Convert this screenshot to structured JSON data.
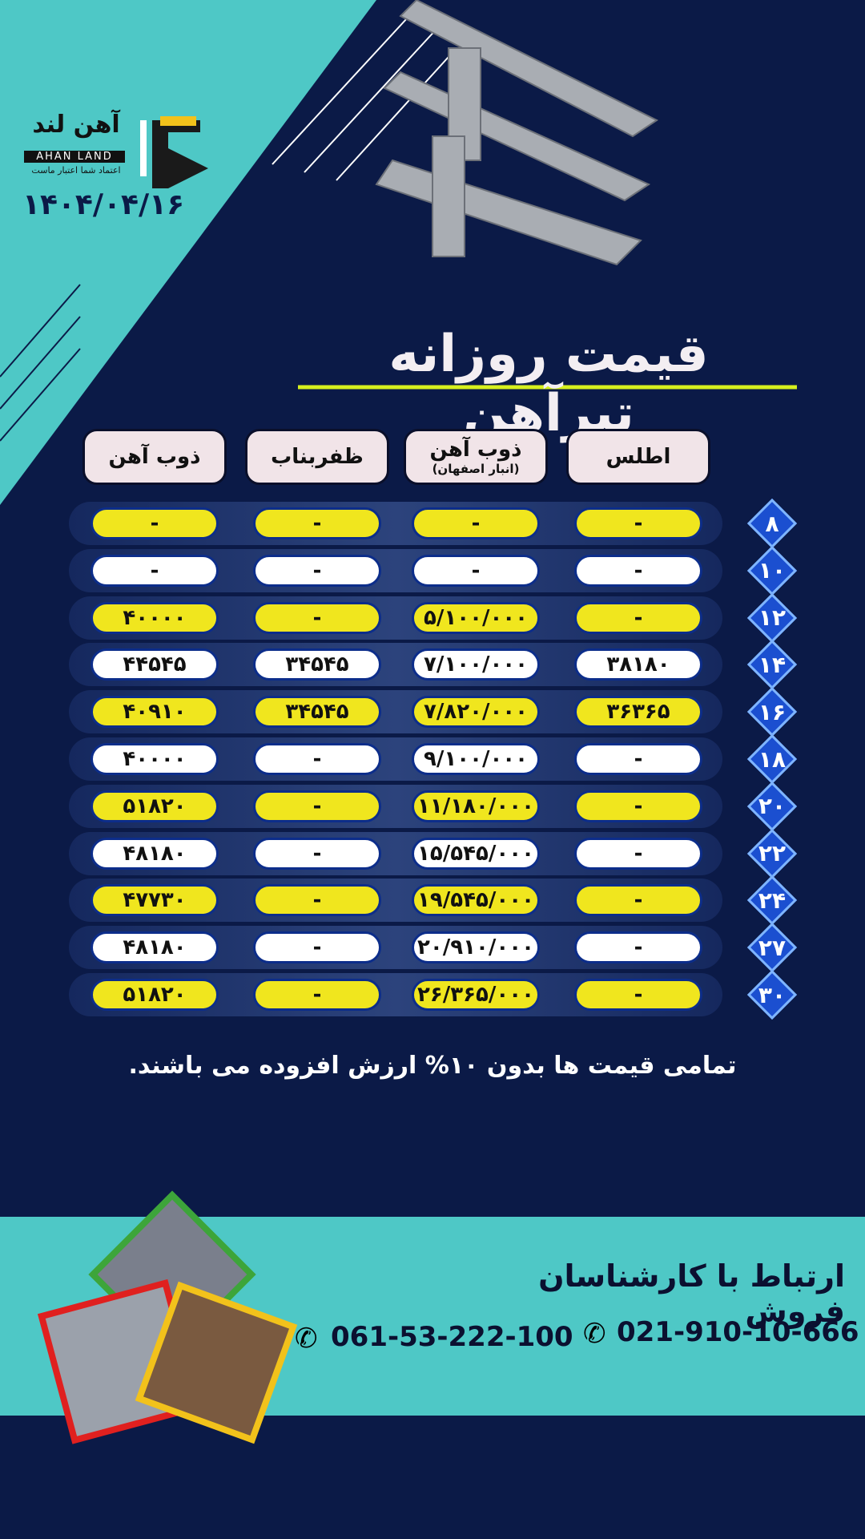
{
  "logo": {
    "name": "آهن لند",
    "latin": "AHAN LAND",
    "slogan": "اعتماد شما اعتبار ماست"
  },
  "date": "۱۴۰۴/۰۴/۱۶",
  "title": "قیمت روزانه تیرآهن",
  "table": {
    "headers": [
      {
        "label": "اطلس"
      },
      {
        "label": "ذوب آهن",
        "note": "(انبار اصفهان)"
      },
      {
        "label": "ظفربناب"
      },
      {
        "label": "ذوب آهن"
      }
    ],
    "rows": [
      {
        "size": "۸",
        "cells": [
          "-",
          "-",
          "-",
          "-"
        ]
      },
      {
        "size": "۱۰",
        "cells": [
          "-",
          "-",
          "-",
          "-"
        ]
      },
      {
        "size": "۱۲",
        "cells": [
          "-",
          "۵/۱۰۰/۰۰۰",
          "-",
          "۴۰۰۰۰"
        ]
      },
      {
        "size": "۱۴",
        "cells": [
          "۳۸۱۸۰",
          "۷/۱۰۰/۰۰۰",
          "۳۴۵۴۵",
          "۴۴۵۴۵"
        ]
      },
      {
        "size": "۱۶",
        "cells": [
          "۳۶۳۶۵",
          "۷/۸۲۰/۰۰۰",
          "۳۴۵۴۵",
          "۴۰۹۱۰"
        ]
      },
      {
        "size": "۱۸",
        "cells": [
          "-",
          "۹/۱۰۰/۰۰۰",
          "-",
          "۴۰۰۰۰"
        ]
      },
      {
        "size": "۲۰",
        "cells": [
          "-",
          "۱۱/۱۸۰/۰۰۰",
          "-",
          "۵۱۸۲۰"
        ]
      },
      {
        "size": "۲۲",
        "cells": [
          "-",
          "۱۵/۵۴۵/۰۰۰",
          "-",
          "۴۸۱۸۰"
        ]
      },
      {
        "size": "۲۴",
        "cells": [
          "-",
          "۱۹/۵۴۵/۰۰۰",
          "-",
          "۴۷۷۳۰"
        ]
      },
      {
        "size": "۲۷",
        "cells": [
          "-",
          "۲۰/۹۱۰/۰۰۰",
          "-",
          "۴۸۱۸۰"
        ]
      },
      {
        "size": "۳۰",
        "cells": [
          "-",
          "۲۶/۳۶۵/۰۰۰",
          "-",
          "۵۱۸۲۰"
        ]
      }
    ]
  },
  "note": "تمامی قیمت ها بدون ۱۰% ارزش افزوده می باشند.",
  "contact": {
    "title": "ارتباط با کارشناسان فروش",
    "phones": [
      "021-910-10-666",
      "061-53-222-100"
    ]
  }
}
